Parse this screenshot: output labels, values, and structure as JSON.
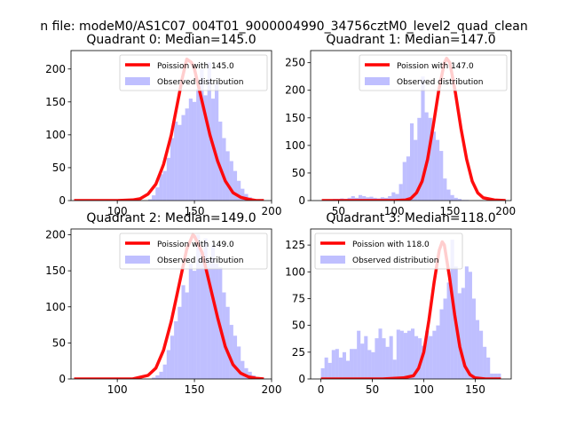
{
  "figure": {
    "suptitle": "n file: modeM0/AS1C07_004T01_9000004990_34756cztM0_level2_quad_clean"
  },
  "colors": {
    "hist": "#8080ff",
    "line": "#ff0000",
    "line_overlap": "#ff8080"
  },
  "chart_data": [
    {
      "type": "bar+line",
      "title": "Quadrant 0: Median=145.0",
      "xlim": [
        70,
        200
      ],
      "ylim": [
        0,
        228
      ],
      "xticks": [
        100,
        150,
        200
      ],
      "yticks": [
        0,
        50,
        100,
        150,
        200
      ],
      "legend": {
        "placement": "top-right",
        "line_label": "Poission with 145.0",
        "hist_label": "Observed distribution"
      },
      "hist": {
        "bin_start": 72,
        "bin_width": 2.4,
        "counts": [
          0,
          0,
          0,
          0,
          0,
          0,
          0,
          0,
          0,
          0,
          0,
          0,
          0,
          0,
          0,
          0,
          0,
          0,
          0,
          0,
          2,
          8,
          20,
          40,
          45,
          65,
          95,
          120,
          115,
          130,
          140,
          155,
          150,
          170,
          200,
          160,
          210,
          155,
          180,
          120,
          95,
          75,
          60,
          45,
          30,
          18,
          10,
          5,
          2,
          0,
          0
        ]
      },
      "poisson": {
        "x": [
          72,
          80,
          90,
          100,
          110,
          115,
          120,
          125,
          130,
          135,
          140,
          142,
          145,
          148,
          150,
          155,
          160,
          165,
          170,
          175,
          180,
          185,
          190,
          195
        ],
        "y": [
          0,
          0,
          0,
          0,
          1,
          3,
          10,
          25,
          55,
          100,
          160,
          185,
          215,
          210,
          200,
          150,
          100,
          60,
          30,
          12,
          5,
          2,
          0,
          0
        ]
      }
    },
    {
      "type": "bar+line",
      "title": "Quadrant 1: Median=147.0",
      "xlim": [
        25,
        205
      ],
      "ylim": [
        0,
        272
      ],
      "xticks": [
        50,
        100,
        150,
        200
      ],
      "yticks": [
        0,
        50,
        100,
        150,
        200,
        250
      ],
      "legend": {
        "placement": "top-right",
        "line_label": "Poission with 147.0",
        "hist_label": "Observed distribution"
      },
      "hist": {
        "bin_start": 35,
        "bin_width": 3.3,
        "counts": [
          1,
          2,
          2,
          3,
          3,
          4,
          3,
          5,
          8,
          5,
          10,
          8,
          6,
          7,
          5,
          4,
          6,
          5,
          8,
          15,
          12,
          30,
          70,
          80,
          140,
          110,
          150,
          225,
          160,
          150,
          125,
          110,
          90,
          40,
          20,
          10,
          5,
          3,
          1,
          1,
          0,
          0,
          0,
          0,
          0,
          0,
          0,
          0,
          0,
          0
        ]
      },
      "poisson": {
        "x": [
          35,
          60,
          80,
          100,
          110,
          115,
          120,
          125,
          130,
          135,
          140,
          145,
          147,
          150,
          155,
          160,
          165,
          170,
          175,
          180,
          190,
          200
        ],
        "y": [
          0,
          0,
          0,
          0,
          1,
          4,
          14,
          35,
          75,
          135,
          200,
          250,
          258,
          250,
          195,
          130,
          75,
          35,
          14,
          5,
          1,
          0
        ]
      }
    },
    {
      "type": "bar+line",
      "title": "Quadrant 2: Median=149.0",
      "xlim": [
        70,
        200
      ],
      "ylim": [
        0,
        208
      ],
      "xticks": [
        100,
        150,
        200
      ],
      "yticks": [
        0,
        50,
        100,
        150,
        200
      ],
      "legend": {
        "placement": "top-right",
        "line_label": "Poission with 149.0",
        "hist_label": "Observed distribution"
      },
      "hist": {
        "bin_start": 72,
        "bin_width": 2.4,
        "counts": [
          0,
          0,
          0,
          0,
          0,
          0,
          0,
          0,
          0,
          0,
          0,
          0,
          0,
          0,
          0,
          0,
          0,
          0,
          0,
          0,
          0,
          2,
          5,
          10,
          20,
          40,
          60,
          80,
          100,
          130,
          120,
          160,
          150,
          200,
          175,
          195,
          165,
          185,
          160,
          155,
          120,
          100,
          75,
          60,
          45,
          25,
          15,
          10,
          5,
          2,
          0
        ]
      },
      "poisson": {
        "x": [
          72,
          90,
          100,
          110,
          120,
          125,
          130,
          135,
          140,
          145,
          149,
          150,
          155,
          160,
          165,
          170,
          175,
          180,
          185,
          190,
          195
        ],
        "y": [
          0,
          0,
          0,
          0,
          5,
          15,
          40,
          80,
          130,
          180,
          200,
          198,
          175,
          130,
          85,
          45,
          20,
          8,
          3,
          1,
          0
        ]
      }
    },
    {
      "type": "bar+line",
      "title": "Quadrant 3: Median=118.0",
      "xlim": [
        -10,
        185
      ],
      "ylim": [
        0,
        140
      ],
      "xticks": [
        0,
        50,
        100,
        150
      ],
      "yticks": [
        0,
        25,
        50,
        75,
        100,
        125
      ],
      "legend": {
        "placement": "top-left",
        "line_label": "Poission with 118.0",
        "hist_label": "Observed distribution"
      },
      "hist": {
        "bin_start": 0,
        "bin_width": 3.5,
        "counts": [
          10,
          20,
          15,
          27,
          28,
          20,
          25,
          17,
          28,
          28,
          45,
          33,
          40,
          27,
          25,
          38,
          47,
          38,
          30,
          40,
          18,
          46,
          45,
          43,
          45,
          47,
          40,
          38,
          31,
          45,
          40,
          45,
          50,
          65,
          75,
          90,
          130,
          105,
          80,
          85,
          105,
          100,
          75,
          55,
          45,
          30,
          20,
          5,
          5,
          5
        ]
      },
      "poisson": {
        "x": [
          0,
          40,
          60,
          80,
          90,
          95,
          100,
          105,
          110,
          115,
          118,
          120,
          125,
          130,
          135,
          140,
          145,
          150,
          160,
          170,
          175
        ],
        "y": [
          0,
          0,
          0,
          1,
          3,
          10,
          25,
          55,
          90,
          120,
          128,
          125,
          95,
          60,
          30,
          12,
          4,
          1,
          0,
          0,
          0
        ]
      }
    }
  ]
}
